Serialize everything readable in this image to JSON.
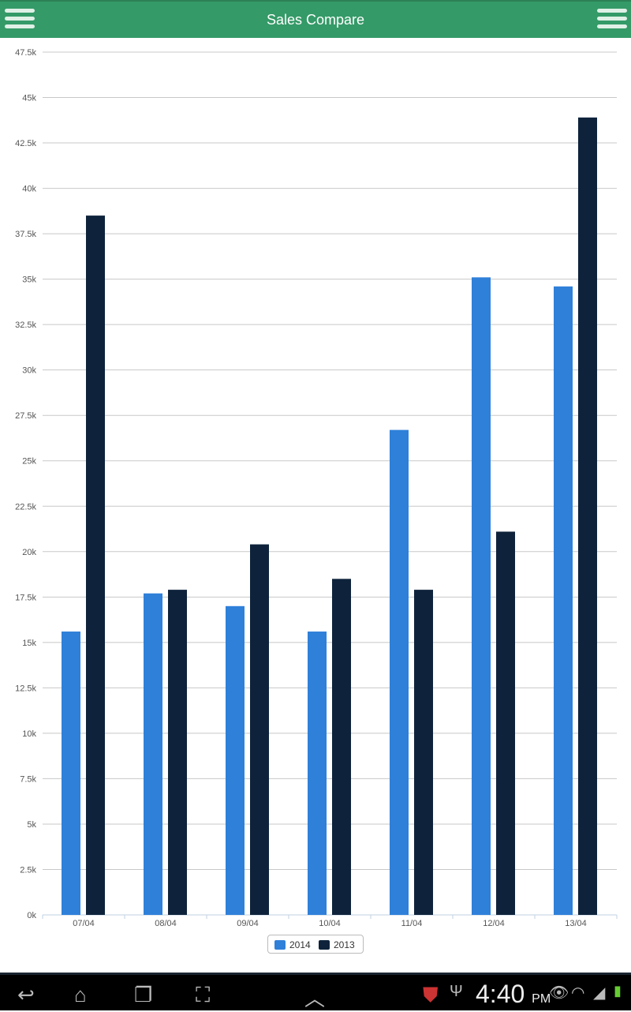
{
  "header": {
    "title": "Sales Compare",
    "left_icon": "menu-icon",
    "right_icon": "menu-icon"
  },
  "chart_data": {
    "type": "bar",
    "title": "",
    "xlabel": "",
    "ylabel": "",
    "categories": [
      "07/04",
      "08/04",
      "09/04",
      "10/04",
      "11/04",
      "12/04",
      "13/04"
    ],
    "series": [
      {
        "name": "2014",
        "color": "#2f80d9",
        "values": [
          15600,
          17700,
          17000,
          15600,
          26700,
          35100,
          34600
        ]
      },
      {
        "name": "2013",
        "color": "#0e233b",
        "values": [
          38500,
          17900,
          20400,
          18500,
          17900,
          21100,
          43900
        ]
      }
    ],
    "ylim": [
      0,
      47500
    ],
    "yticks": [
      0,
      2500,
      5000,
      7500,
      10000,
      12500,
      15000,
      17500,
      20000,
      22500,
      25000,
      27500,
      30000,
      32500,
      35000,
      37500,
      40000,
      42500,
      45000,
      47500
    ],
    "ytick_labels": [
      "0k",
      "2.5k",
      "5k",
      "7.5k",
      "10k",
      "12.5k",
      "15k",
      "17.5k",
      "20k",
      "22.5k",
      "25k",
      "27.5k",
      "30k",
      "32.5k",
      "35k",
      "37.5k",
      "40k",
      "42.5k",
      "45k",
      "47.5k"
    ],
    "grid": true,
    "legend": "bottom-center"
  },
  "statusbar": {
    "time": "4:40",
    "ampm": "PM"
  }
}
